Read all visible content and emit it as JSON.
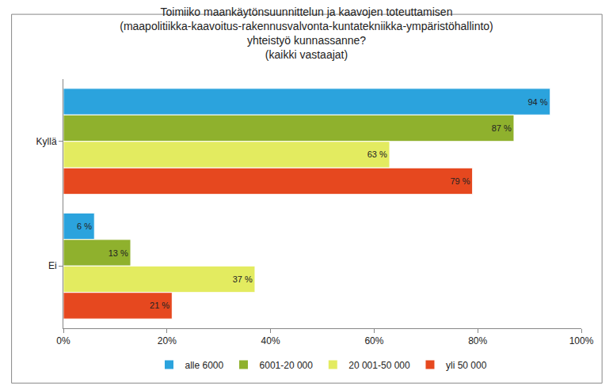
{
  "chart_data": {
    "type": "bar",
    "orientation": "horizontal",
    "title": "Toimiiko maankäytönsuunnittelun ja kaavojen toteuttamisen\n(maapolitiikka-kaavoitus-rakennusvalvonta-kuntatekniikka-ympäristöhallinto)\nyhteistyö kunnassanne?\n(kaikki vastaajat)",
    "categories": [
      "Kyllä",
      "Ei"
    ],
    "series": [
      {
        "name": "alle 6000",
        "color": "#2ba3dd",
        "values": [
          94,
          6
        ],
        "value_labels": [
          "94 %",
          "6 %"
        ]
      },
      {
        "name": "6001-20 000",
        "color": "#8fb12d",
        "values": [
          87,
          13
        ],
        "value_labels": [
          "87 %",
          "13 %"
        ]
      },
      {
        "name": "20 001-50 000",
        "color": "#e3eb60",
        "values": [
          63,
          37
        ],
        "value_labels": [
          "63 %",
          "37 %"
        ]
      },
      {
        "name": "yli 50 000",
        "color": "#e6481f",
        "values": [
          79,
          21
        ],
        "value_labels": [
          "79 %",
          "21 %"
        ]
      }
    ],
    "xlim": [
      0,
      100
    ],
    "xticks": [
      {
        "value": 0,
        "label": "0%"
      },
      {
        "value": 20,
        "label": "20%"
      },
      {
        "value": 40,
        "label": "40%"
      },
      {
        "value": 60,
        "label": "60%"
      },
      {
        "value": 80,
        "label": "80%"
      },
      {
        "value": 100,
        "label": "100%"
      }
    ],
    "grid": false,
    "legend": "bottom",
    "data_labels": true
  }
}
